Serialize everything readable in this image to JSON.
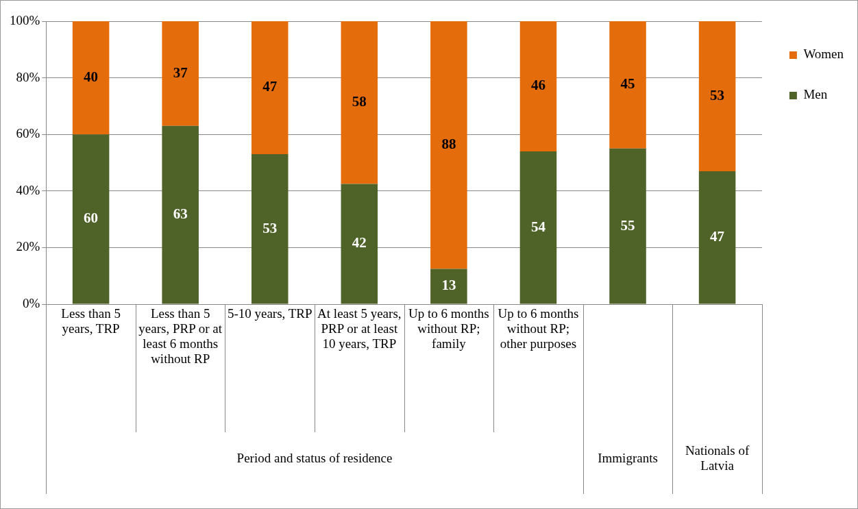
{
  "chart_data": {
    "type": "bar",
    "stacked": true,
    "categories": [
      "Less than 5 years, TRP",
      "Less than 5 years, PRP or at least 6 months without RP",
      "5-10 years, TRP",
      "At least 5 years, PRP or at least 10 years, TRP",
      "Up to 6 months without RP; family",
      "Up to 6 months without RP; other purposes",
      null,
      null
    ],
    "series": [
      {
        "name": "Men",
        "color": "#4f6228",
        "values": [
          60,
          63,
          53,
          42.5,
          12.5,
          54,
          55,
          47
        ],
        "value_labels": [
          "60",
          "63",
          "53",
          "42",
          "13",
          "54",
          "55",
          "47"
        ]
      },
      {
        "name": "Women",
        "color": "#e46c0a",
        "values": [
          40,
          37,
          47,
          57.5,
          87.5,
          46,
          45,
          53
        ],
        "value_labels": [
          "40",
          "37",
          "47",
          "58",
          "88",
          "46",
          "45",
          "53"
        ]
      }
    ],
    "ylim": [
      0,
      100
    ],
    "yticks": [
      {
        "value": 0,
        "label": "0%"
      },
      {
        "value": 20,
        "label": "20%"
      },
      {
        "value": 40,
        "label": "40%"
      },
      {
        "value": 60,
        "label": "60%"
      },
      {
        "value": 80,
        "label": "80%"
      },
      {
        "value": 100,
        "label": "100%"
      }
    ],
    "grid": "y",
    "legend": "right",
    "annotations": [
      "Period and status of residence",
      "Immigrants",
      "Nationals of Latvia"
    ]
  }
}
